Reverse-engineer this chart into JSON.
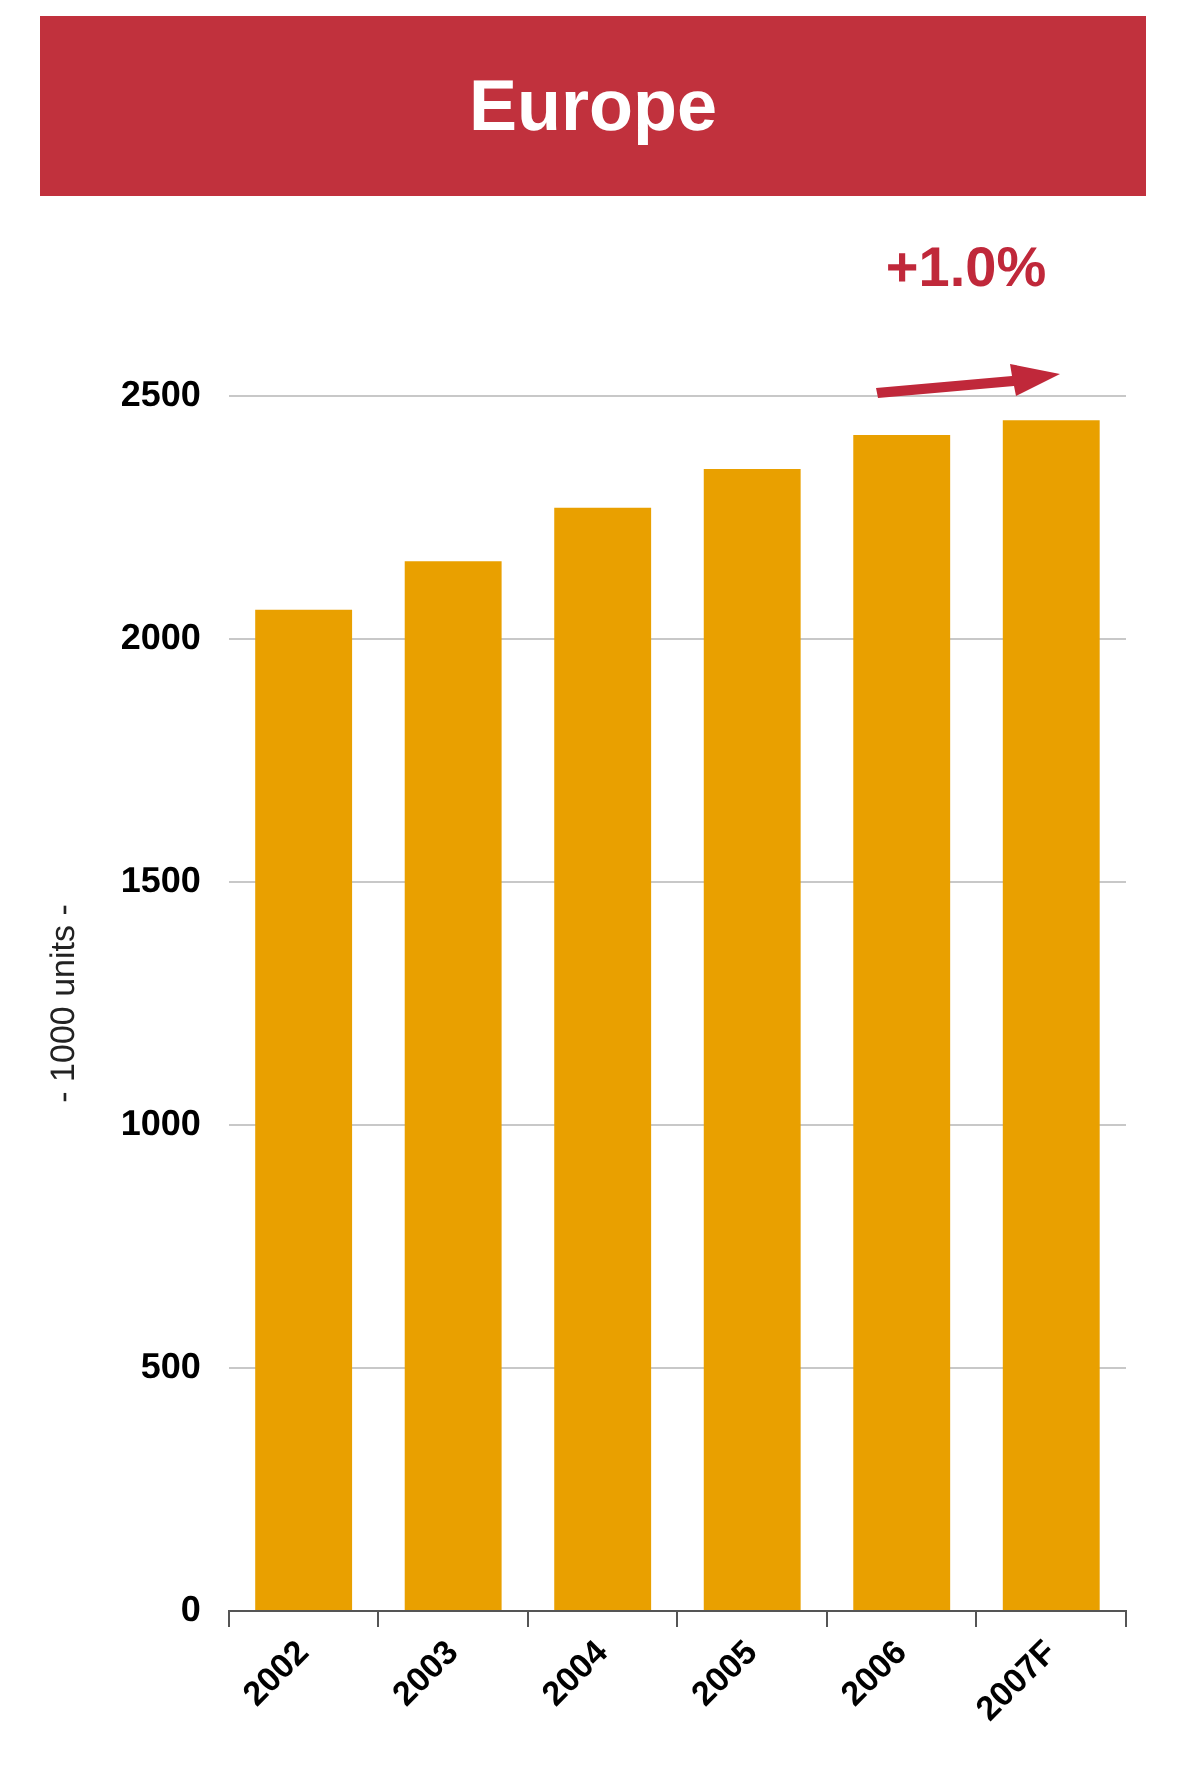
{
  "chart_data": {
    "type": "bar",
    "title": "Europe",
    "ylabel": "- 1000 units -",
    "categories": [
      "2002",
      "2003",
      "2004",
      "2005",
      "2006",
      "2007F"
    ],
    "values": [
      2060,
      2160,
      2270,
      2350,
      2420,
      2450
    ],
    "color": "#e9a000",
    "ylim": [
      0,
      2500
    ],
    "yticks": [
      0,
      500,
      1000,
      1500,
      2000,
      2500
    ],
    "grid": "y",
    "annotations": [
      "+1.0%"
    ]
  }
}
